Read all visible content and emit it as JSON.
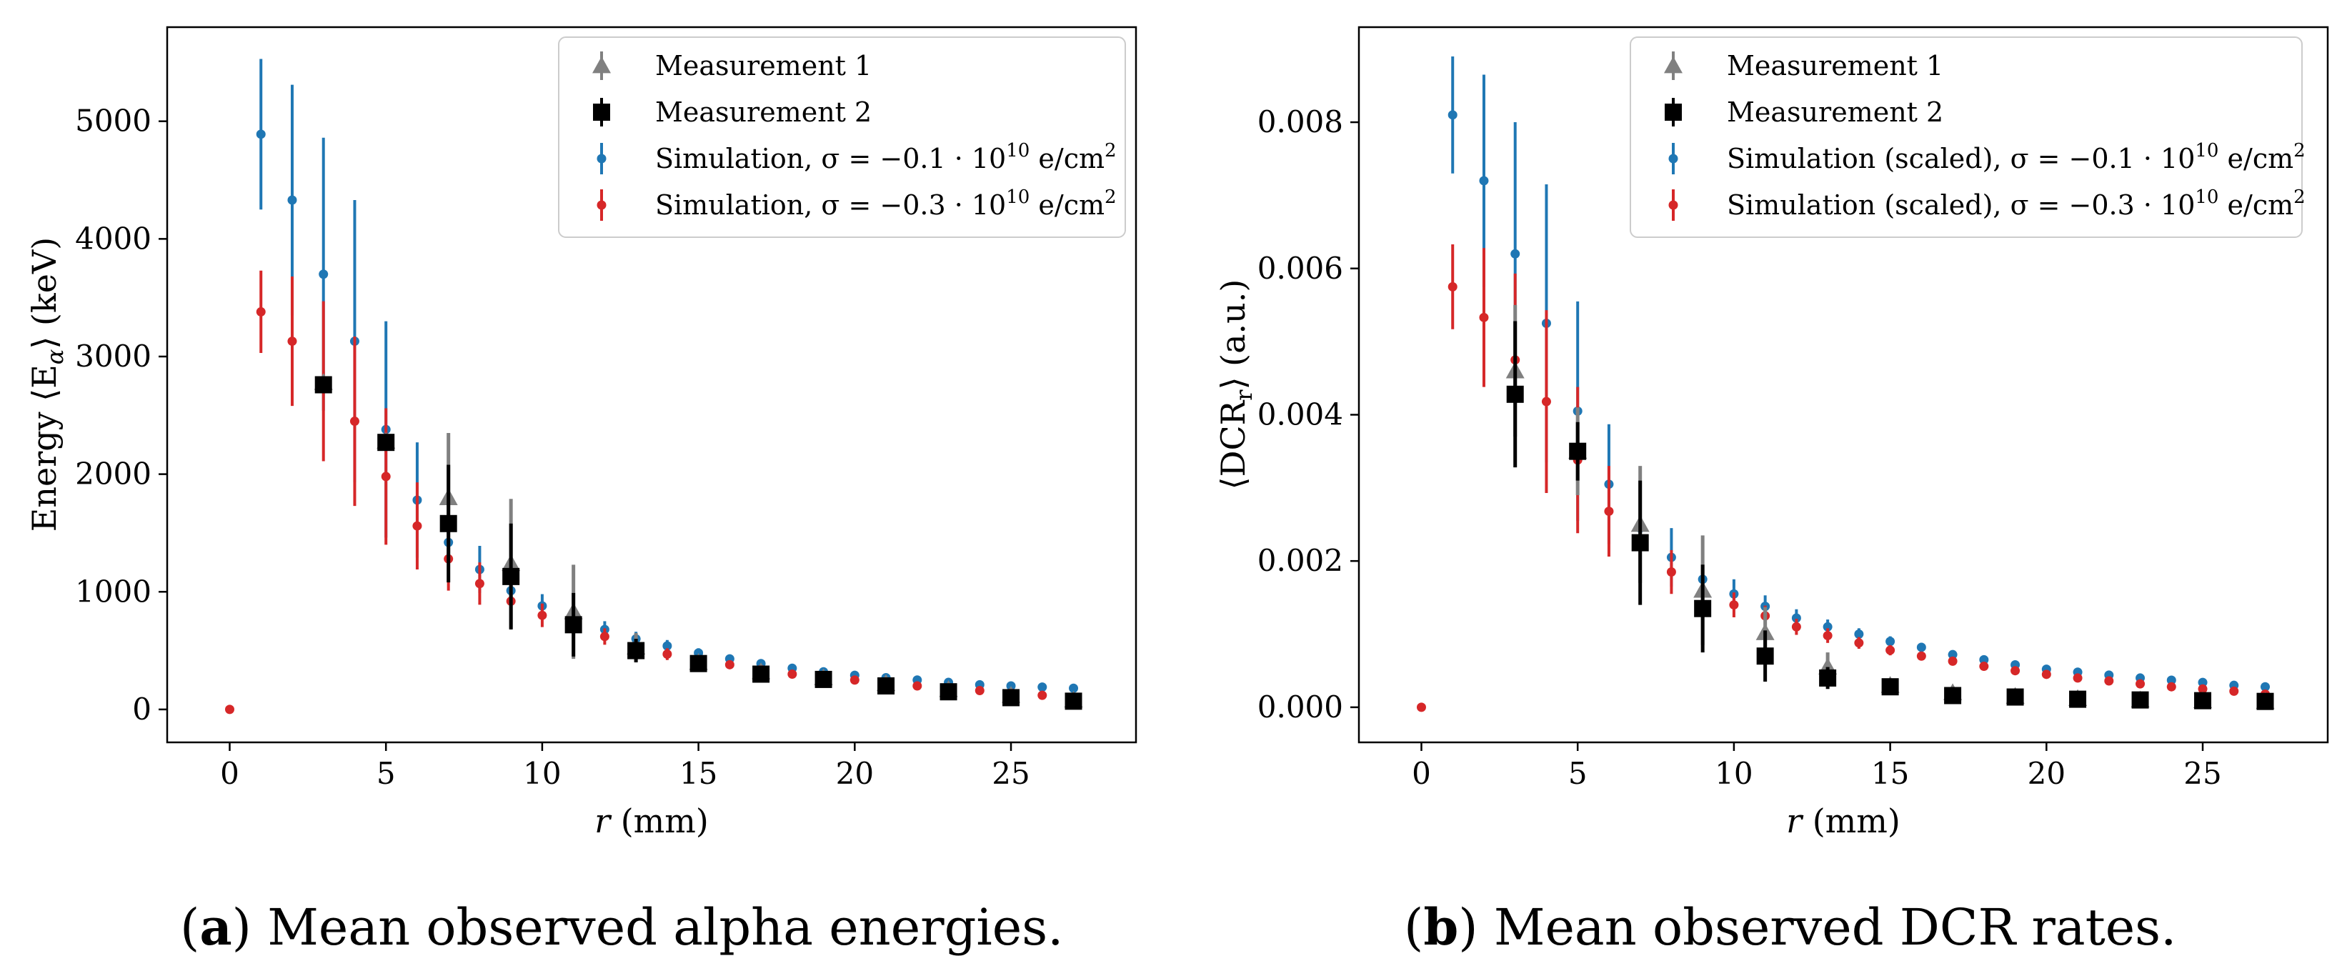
{
  "chart_data": [
    {
      "type": "scatter",
      "panel": "a",
      "ylabel_pre": "Energy ⟨E",
      "ylabel_sub": "α",
      "ylabel_post": "⟩ (keV)",
      "xlabel_var": "r",
      "xlabel_unit": " (mm)",
      "xlim": [
        -2,
        29
      ],
      "ylim": [
        -280,
        5800
      ],
      "xticks": [
        0,
        5,
        10,
        15,
        20,
        25
      ],
      "xtick_labels": [
        "0",
        "5",
        "10",
        "15",
        "20",
        "25"
      ],
      "yticks": [
        0,
        1000,
        2000,
        3000,
        4000,
        5000
      ],
      "ytick_labels": [
        "0",
        "1000",
        "2000",
        "3000",
        "4000",
        "5000"
      ],
      "legend_position": "top-right",
      "caption_label": "a",
      "caption_text": " Mean observed alpha energies.",
      "series": [
        {
          "name": "Measurement 1",
          "legend_main": "Measurement 1",
          "marker": "triangle",
          "color": "#808080",
          "x": [
            3,
            5,
            7,
            9,
            11,
            13,
            15,
            17,
            19,
            21,
            23,
            25,
            27
          ],
          "y": [
            2780,
            2280,
            1800,
            1240,
            830,
            530,
            400,
            320,
            270,
            220,
            170,
            120,
            80
          ],
          "err": [
            0,
            0,
            550,
            550,
            400,
            120,
            50,
            40,
            30,
            25,
            25,
            20,
            20
          ]
        },
        {
          "name": "Measurement 2",
          "legend_main": "Measurement 2",
          "marker": "square",
          "color": "#000000",
          "x": [
            3,
            5,
            7,
            9,
            11,
            13,
            15,
            17,
            19,
            21,
            23,
            25,
            27
          ],
          "y": [
            2760,
            2270,
            1580,
            1130,
            720,
            500,
            390,
            300,
            255,
            200,
            150,
            100,
            70
          ],
          "err": [
            0,
            0,
            500,
            450,
            270,
            100,
            50,
            40,
            30,
            25,
            20,
            20,
            20
          ]
        },
        {
          "name": "Simulation, σ = −0.1 · 10^10 e/cm^2",
          "legend_main": "Simulation, σ = −0.1 · 10",
          "legend_sup": "10",
          "legend_unit": " e/cm",
          "legend_sup2": "2",
          "marker": "dot",
          "color": "#1f77b4",
          "x": [
            1,
            2,
            3,
            4,
            5,
            6,
            7,
            8,
            9,
            10,
            11,
            12,
            13,
            14,
            15,
            16,
            17,
            18,
            19,
            20,
            21,
            22,
            23,
            24,
            25,
            26,
            27
          ],
          "y": [
            4890,
            4330,
            3700,
            3130,
            2380,
            1780,
            1420,
            1190,
            1010,
            880,
            780,
            680,
            600,
            540,
            480,
            430,
            390,
            350,
            320,
            290,
            270,
            250,
            230,
            210,
            200,
            190,
            180
          ],
          "err": [
            640,
            980,
            1160,
            1200,
            920,
            490,
            260,
            200,
            140,
            100,
            90,
            70,
            60,
            50,
            40,
            35,
            30,
            25,
            20,
            20,
            20,
            15,
            15,
            15,
            15,
            15,
            15
          ]
        },
        {
          "name": "Simulation, σ = −0.3 · 10^10 e/cm^2",
          "legend_main": "Simulation, σ = −0.3 · 10",
          "legend_sup": "10",
          "legend_unit": " e/cm",
          "legend_sup2": "2",
          "marker": "dot",
          "color": "#d62728",
          "x": [
            0,
            1,
            2,
            3,
            4,
            5,
            6,
            7,
            8,
            9,
            10,
            11,
            12,
            13,
            14,
            15,
            16,
            17,
            18,
            19,
            20,
            21,
            22,
            23,
            24,
            25,
            26,
            27
          ],
          "y": [
            0,
            3380,
            3130,
            2790,
            2450,
            1980,
            1560,
            1280,
            1070,
            920,
            800,
            700,
            620,
            540,
            470,
            420,
            380,
            340,
            300,
            270,
            250,
            230,
            200,
            180,
            160,
            140,
            120,
            100
          ],
          "err": [
            0,
            350,
            550,
            680,
            720,
            580,
            370,
            270,
            180,
            130,
            100,
            80,
            70,
            60,
            50,
            40,
            35,
            30,
            25,
            20,
            20,
            20,
            15,
            15,
            15,
            15,
            15,
            15
          ]
        }
      ]
    },
    {
      "type": "scatter",
      "panel": "b",
      "ylabel_pre": "⟨DCR",
      "ylabel_sub": "r",
      "ylabel_post": "⟩ (a.u.)",
      "xlabel_var": "r",
      "xlabel_unit": " (mm)",
      "xlim": [
        -2,
        29
      ],
      "ylim": [
        -0.00048,
        0.0093
      ],
      "xticks": [
        0,
        5,
        10,
        15,
        20,
        25
      ],
      "xtick_labels": [
        "0",
        "5",
        "10",
        "15",
        "20",
        "25"
      ],
      "yticks": [
        0,
        0.002,
        0.004,
        0.006,
        0.008
      ],
      "ytick_labels": [
        "0.000",
        "0.002",
        "0.004",
        "0.006",
        "0.008"
      ],
      "legend_position": "top-right",
      "caption_label": "b",
      "caption_text": " Mean observed DCR rates.",
      "series": [
        {
          "name": "Measurement 1",
          "legend_main": "Measurement 1",
          "marker": "triangle",
          "color": "#808080",
          "x": [
            3,
            5,
            7,
            9,
            11,
            13,
            15,
            17,
            19,
            21,
            23,
            25,
            27
          ],
          "y": [
            0.0046,
            0.0035,
            0.0025,
            0.0016,
            0.00102,
            0.00055,
            0.0003,
            0.0002,
            0.00015,
            0.00012,
            0.0001,
            9e-05,
            8e-05
          ],
          "err": [
            0.0009,
            0.0006,
            0.0008,
            0.00075,
            0.00035,
            0.0002,
            5e-05,
            4e-05,
            3e-05,
            3e-05,
            2e-05,
            2e-05,
            2e-05
          ]
        },
        {
          "name": "Measurement 2",
          "legend_main": "Measurement 2",
          "marker": "square",
          "color": "#000000",
          "x": [
            3,
            5,
            7,
            9,
            11,
            13,
            15,
            17,
            19,
            21,
            23,
            25,
            27
          ],
          "y": [
            0.00428,
            0.0035,
            0.00225,
            0.00135,
            0.0007,
            0.0004,
            0.00028,
            0.00016,
            0.00014,
            0.00011,
            0.0001,
            9e-05,
            8e-05
          ],
          "err": [
            0.001,
            0.0004,
            0.00085,
            0.0006,
            0.00035,
            0.00015,
            5e-05,
            4e-05,
            3e-05,
            3e-05,
            2e-05,
            2e-05,
            2e-05
          ]
        },
        {
          "name": "Simulation (scaled), σ = −0.1 · 10^10 e/cm^2",
          "legend_main": "Simulation (scaled), σ = −0.1 · 10",
          "legend_sup": "10",
          "legend_unit": " e/cm",
          "legend_sup2": "2",
          "marker": "dot",
          "color": "#1f77b4",
          "x": [
            1,
            2,
            3,
            4,
            5,
            6,
            7,
            8,
            9,
            10,
            11,
            12,
            13,
            14,
            15,
            16,
            17,
            18,
            19,
            20,
            21,
            22,
            23,
            24,
            25,
            26,
            27
          ],
          "y": [
            0.0081,
            0.0072,
            0.0062,
            0.00525,
            0.00405,
            0.00305,
            0.00245,
            0.00205,
            0.00175,
            0.00155,
            0.00138,
            0.00122,
            0.0011,
            0.001,
            0.0009,
            0.00082,
            0.00072,
            0.00065,
            0.00058,
            0.00052,
            0.00048,
            0.00044,
            0.0004,
            0.00037,
            0.00034,
            0.0003,
            0.00028
          ],
          "err": [
            0.0008,
            0.00145,
            0.0018,
            0.0019,
            0.0015,
            0.00082,
            0.0005,
            0.0004,
            0.00025,
            0.0002,
            0.00015,
            0.00012,
            0.0001,
            8e-05,
            7e-05,
            6e-05,
            5e-05,
            4e-05,
            4e-05,
            3e-05,
            3e-05,
            3e-05,
            3e-05,
            3e-05,
            3e-05,
            2e-05,
            2e-05
          ]
        },
        {
          "name": "Simulation (scaled), σ = −0.3 · 10^10 e/cm^2",
          "legend_main": "Simulation (scaled), σ = −0.3 · 10",
          "legend_sup": "10",
          "legend_unit": " e/cm",
          "legend_sup2": "2",
          "marker": "dot",
          "color": "#d62728",
          "x": [
            0,
            1,
            2,
            3,
            4,
            5,
            6,
            7,
            8,
            9,
            10,
            11,
            12,
            13,
            14,
            15,
            16,
            17,
            18,
            19,
            20,
            21,
            22,
            23,
            24,
            25,
            26,
            27
          ],
          "y": [
            0,
            0.00575,
            0.00533,
            0.00475,
            0.00418,
            0.00338,
            0.00268,
            0.0022,
            0.00185,
            0.00158,
            0.0014,
            0.00125,
            0.0011,
            0.00098,
            0.00088,
            0.00078,
            0.0007,
            0.00063,
            0.00056,
            0.0005,
            0.00045,
            0.0004,
            0.00036,
            0.00032,
            0.00028,
            0.00025,
            0.00022,
            0.00018
          ],
          "err": [
            0,
            0.00058,
            0.00095,
            0.00118,
            0.00125,
            0.001,
            0.00062,
            0.00045,
            0.0003,
            0.00022,
            0.00017,
            0.00014,
            0.00011,
            0.0001,
            8e-05,
            7e-05,
            6e-05,
            5e-05,
            4e-05,
            4e-05,
            3e-05,
            3e-05,
            3e-05,
            3e-05,
            2e-05,
            2e-05,
            2e-05,
            2e-05
          ]
        }
      ]
    }
  ]
}
